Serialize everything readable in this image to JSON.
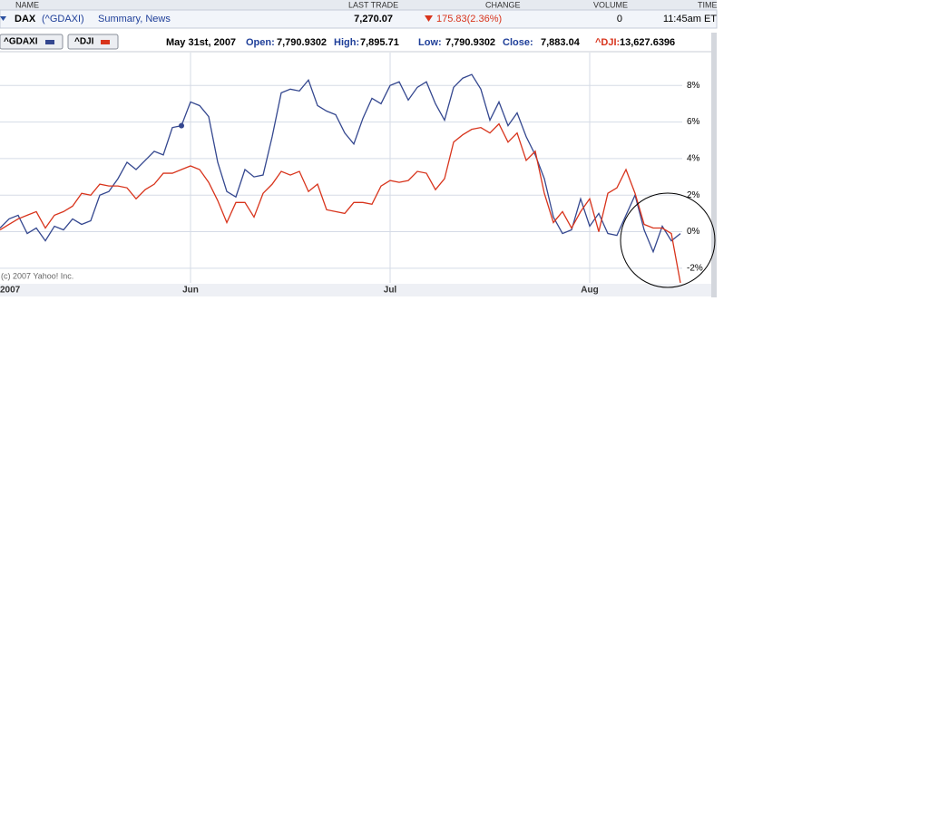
{
  "header": {
    "columns": [
      "NAME",
      "LAST TRADE",
      "CHANGE",
      "VOLUME",
      "TIME"
    ],
    "row": {
      "name": "DAX",
      "ticker": "(^GDAXI)",
      "links": "Summary, News",
      "last_trade": "7,270.07",
      "change": "175.83(2.36%)",
      "volume": "0",
      "time": "11:45am ET"
    }
  },
  "toolbar": {
    "buttons": [
      "^GDAXI",
      "^DJI"
    ],
    "date": "May 31st, 2007",
    "stats": [
      {
        "label": "Open:",
        "value": "7,790.9302"
      },
      {
        "label": "High:",
        "value": "7,895.71"
      },
      {
        "label": "Low:",
        "value": "7,790.9302"
      },
      {
        "label": "Close:",
        "value": "7,883.04"
      },
      {
        "label": "^DJI:",
        "value": "13,627.6396"
      }
    ]
  },
  "chart_data": {
    "type": "line",
    "credit": "(c) 2007 Yahoo! Inc.",
    "categories": [
      "2007",
      null,
      null,
      null,
      null,
      null,
      null,
      null,
      null,
      null,
      null,
      null,
      null,
      null,
      null,
      null,
      null,
      null,
      null,
      null,
      null,
      "Jun",
      null,
      null,
      null,
      null,
      null,
      null,
      null,
      null,
      null,
      null,
      null,
      null,
      null,
      null,
      null,
      null,
      null,
      null,
      null,
      null,
      null,
      "Jul",
      null,
      null,
      null,
      null,
      null,
      null,
      null,
      null,
      null,
      null,
      null,
      null,
      null,
      null,
      null,
      null,
      null,
      null,
      null,
      null,
      null,
      "Aug",
      null,
      null,
      null,
      null,
      null,
      null,
      null,
      null,
      null,
      null
    ],
    "series": [
      {
        "name": "^GDAXI",
        "color": "#34478f",
        "values": [
          0.2,
          0.7,
          0.9,
          -0.1,
          0.2,
          -0.5,
          0.3,
          0.1,
          0.7,
          0.4,
          0.6,
          2.0,
          2.2,
          2.9,
          3.8,
          3.4,
          3.9,
          4.4,
          4.2,
          5.7,
          5.8,
          7.1,
          6.9,
          6.3,
          3.8,
          2.2,
          1.9,
          3.4,
          3.0,
          3.1,
          5.2,
          7.6,
          7.8,
          7.7,
          8.3,
          6.9,
          6.6,
          6.4,
          5.4,
          4.8,
          6.2,
          7.3,
          7.0,
          8.0,
          8.2,
          7.2,
          7.9,
          8.2,
          7.0,
          6.1,
          7.9,
          8.4,
          8.6,
          7.8,
          6.1,
          7.1,
          5.8,
          6.5,
          5.2,
          4.2,
          2.9,
          0.8,
          -0.1,
          0.1,
          1.8,
          0.3,
          1.0,
          -0.1,
          -0.2,
          0.9,
          2.0,
          0.1,
          -1.1,
          0.3,
          -0.5,
          -0.1
        ]
      },
      {
        "name": "^DJI",
        "color": "#d8341c",
        "values": [
          0.1,
          0.4,
          0.7,
          0.9,
          1.1,
          0.2,
          0.9,
          1.1,
          1.4,
          2.1,
          2.0,
          2.6,
          2.5,
          2.5,
          2.4,
          1.8,
          2.3,
          2.6,
          3.2,
          3.2,
          3.4,
          3.6,
          3.4,
          2.7,
          1.7,
          0.5,
          1.6,
          1.6,
          0.8,
          2.1,
          2.6,
          3.3,
          3.1,
          3.3,
          2.2,
          2.6,
          1.2,
          1.1,
          1.0,
          1.6,
          1.6,
          1.5,
          2.5,
          2.8,
          2.7,
          2.8,
          3.3,
          3.2,
          2.3,
          2.9,
          4.9,
          5.3,
          5.6,
          5.7,
          5.4,
          5.9,
          4.9,
          5.4,
          3.9,
          4.4,
          2.1,
          0.5,
          1.1,
          0.2,
          1.1,
          1.8,
          0.0,
          2.1,
          2.4,
          3.4,
          2.1,
          0.4,
          0.2,
          0.2,
          -0.1,
          -2.8
        ]
      }
    ],
    "ylim": [
      -2.8,
      9.8
    ],
    "yticks": [
      {
        "value": -2,
        "label": "-2%"
      },
      {
        "value": 0,
        "label": "0%"
      },
      {
        "value": 2,
        "label": "2%"
      },
      {
        "value": 4,
        "label": "4%"
      },
      {
        "value": 6,
        "label": "6%"
      },
      {
        "value": 8,
        "label": "8%"
      }
    ],
    "grid": true,
    "highlight_index": 20
  }
}
